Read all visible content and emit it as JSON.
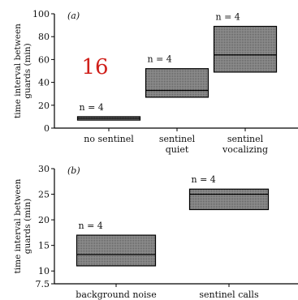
{
  "annotation": {
    "text": "16",
    "color": "#d0201b"
  },
  "box_fill": "#8c8c8c",
  "chart_data": [
    {
      "type": "box",
      "panel_label": "(a)",
      "ylabel": "time interval between guards (min)",
      "ylim": [
        0,
        100
      ],
      "yticks": [
        0,
        20,
        40,
        60,
        80,
        100
      ],
      "groups": [
        {
          "category": "no sentinel",
          "low": 7,
          "median": 8.5,
          "high": 10,
          "n_label": "n = 4"
        },
        {
          "category": "sentinel quiet",
          "low": 27,
          "median": 33,
          "high": 52,
          "n_label": "n = 4"
        },
        {
          "category": "sentinel vocalizing",
          "low": 49,
          "median": 64,
          "high": 89,
          "n_label": "n = 4"
        }
      ]
    },
    {
      "type": "box",
      "panel_label": "(b)",
      "ylabel": "time interval between guards (min)",
      "ylim": [
        7.5,
        30
      ],
      "yticks": [
        7.5,
        10,
        15,
        20,
        25,
        30
      ],
      "groups": [
        {
          "category": "background noise",
          "low": 11,
          "median": 13.2,
          "high": 17,
          "n_label": "n = 4"
        },
        {
          "category": "sentinel calls",
          "low": 22,
          "median": 25,
          "high": 26,
          "n_label": "n = 4"
        }
      ]
    }
  ]
}
